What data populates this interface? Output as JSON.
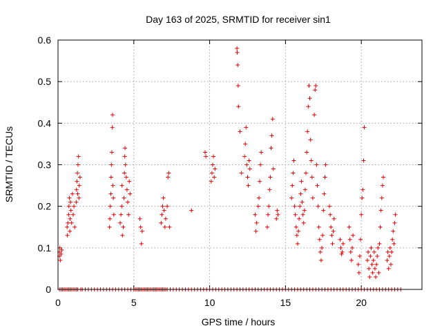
{
  "chart_data": {
    "type": "scatter",
    "title": "Day 163 of 2025, SRMTID for receiver sin1",
    "xlabel": "GPS time / hours",
    "ylabel": "SRMTID / TECUs",
    "xlim": [
      0,
      24
    ],
    "ylim": [
      0,
      0.6
    ],
    "xticks": [
      0,
      5,
      10,
      15,
      20
    ],
    "xtick_labels": [
      "0",
      "5",
      "10",
      "15",
      "20"
    ],
    "yticks": [
      0,
      0.1,
      0.2,
      0.3,
      0.4,
      0.5,
      0.6
    ],
    "ytick_labels": [
      "0",
      "0.1",
      "0.2",
      "0.3",
      "0.4",
      "0.5",
      "0.6"
    ],
    "grid": true,
    "marker": "+",
    "series": [
      {
        "name": "SRMTID",
        "color": "#e00000",
        "points": [
          [
            0.1,
            0.08
          ],
          [
            0.1,
            0.09
          ],
          [
            0.12,
            0.1
          ],
          [
            0.15,
            0.07
          ],
          [
            0.2,
            0.085
          ],
          [
            0.25,
            0.095
          ],
          [
            0.6,
            0.15
          ],
          [
            0.62,
            0.13
          ],
          [
            0.65,
            0.16
          ],
          [
            0.7,
            0.18
          ],
          [
            0.72,
            0.2
          ],
          [
            0.75,
            0.22
          ],
          [
            0.78,
            0.14
          ],
          [
            0.8,
            0.17
          ],
          [
            0.82,
            0.21
          ],
          [
            0.85,
            0.19
          ],
          [
            0.9,
            0.16
          ],
          [
            0.95,
            0.23
          ],
          [
            1.0,
            0.18
          ],
          [
            1.05,
            0.2
          ],
          [
            1.1,
            0.15
          ],
          [
            1.2,
            0.21
          ],
          [
            1.22,
            0.24
          ],
          [
            1.25,
            0.26
          ],
          [
            1.28,
            0.28
          ],
          [
            1.3,
            0.23
          ],
          [
            1.32,
            0.3
          ],
          [
            1.35,
            0.32
          ],
          [
            1.38,
            0.22
          ],
          [
            1.4,
            0.25
          ],
          [
            1.45,
            0.27
          ],
          [
            3.4,
            0.15
          ],
          [
            3.42,
            0.17
          ],
          [
            3.45,
            0.2
          ],
          [
            3.48,
            0.23
          ],
          [
            3.5,
            0.27
          ],
          [
            3.52,
            0.3
          ],
          [
            3.55,
            0.33
          ],
          [
            3.58,
            0.39
          ],
          [
            3.6,
            0.42
          ],
          [
            3.62,
            0.25
          ],
          [
            3.65,
            0.22
          ],
          [
            3.68,
            0.18
          ],
          [
            4.1,
            0.16
          ],
          [
            4.15,
            0.18
          ],
          [
            4.2,
            0.2
          ],
          [
            4.22,
            0.25
          ],
          [
            4.25,
            0.13
          ],
          [
            4.3,
            0.15
          ],
          [
            4.35,
            0.22
          ],
          [
            4.38,
            0.28
          ],
          [
            4.4,
            0.32
          ],
          [
            4.42,
            0.34
          ],
          [
            4.45,
            0.3
          ],
          [
            4.5,
            0.27
          ],
          [
            4.55,
            0.24
          ],
          [
            4.6,
            0.21
          ],
          [
            4.65,
            0.18
          ],
          [
            4.7,
            0.26
          ],
          [
            4.75,
            0.23
          ],
          [
            5.4,
            0.17
          ],
          [
            5.45,
            0.15
          ],
          [
            5.5,
            0.11
          ],
          [
            5.55,
            0.14
          ],
          [
            6.8,
            0.16
          ],
          [
            6.85,
            0.18
          ],
          [
            6.9,
            0.2
          ],
          [
            6.95,
            0.22
          ],
          [
            7.0,
            0.19
          ],
          [
            7.05,
            0.15
          ],
          [
            7.1,
            0.17
          ],
          [
            7.2,
            0.2
          ],
          [
            7.25,
            0.27
          ],
          [
            7.3,
            0.28
          ],
          [
            7.35,
            0.15
          ],
          [
            8.8,
            0.19
          ],
          [
            9.7,
            0.33
          ],
          [
            9.75,
            0.32
          ],
          [
            10.1,
            0.26
          ],
          [
            10.15,
            0.28
          ],
          [
            10.2,
            0.3
          ],
          [
            10.25,
            0.32
          ],
          [
            10.3,
            0.27
          ],
          [
            10.35,
            0.29
          ],
          [
            11.8,
            0.58
          ],
          [
            11.82,
            0.57
          ],
          [
            11.85,
            0.54
          ],
          [
            11.88,
            0.49
          ],
          [
            11.9,
            0.44
          ],
          [
            12.0,
            0.38
          ],
          [
            12.1,
            0.28
          ],
          [
            12.3,
            0.32
          ],
          [
            12.35,
            0.35
          ],
          [
            12.4,
            0.39
          ],
          [
            12.45,
            0.3
          ],
          [
            12.5,
            0.27
          ],
          [
            12.55,
            0.25
          ],
          [
            12.6,
            0.31
          ],
          [
            12.65,
            0.29
          ],
          [
            13.0,
            0.18
          ],
          [
            13.05,
            0.14
          ],
          [
            13.1,
            0.16
          ],
          [
            13.2,
            0.2
          ],
          [
            13.25,
            0.22
          ],
          [
            13.3,
            0.26
          ],
          [
            13.35,
            0.3
          ],
          [
            13.4,
            0.33
          ],
          [
            13.8,
            0.15
          ],
          [
            13.85,
            0.18
          ],
          [
            13.9,
            0.2
          ],
          [
            13.95,
            0.24
          ],
          [
            14.0,
            0.27
          ],
          [
            14.05,
            0.34
          ],
          [
            14.1,
            0.37
          ],
          [
            14.15,
            0.41
          ],
          [
            14.2,
            0.29
          ],
          [
            14.4,
            0.17
          ],
          [
            14.45,
            0.19
          ],
          [
            14.5,
            0.18
          ],
          [
            15.4,
            0.22
          ],
          [
            15.45,
            0.25
          ],
          [
            15.5,
            0.28
          ],
          [
            15.55,
            0.31
          ],
          [
            15.6,
            0.2
          ],
          [
            15.65,
            0.18
          ],
          [
            15.7,
            0.15
          ],
          [
            15.75,
            0.13
          ],
          [
            15.8,
            0.11
          ],
          [
            15.85,
            0.14
          ],
          [
            15.9,
            0.17
          ],
          [
            15.95,
            0.2
          ],
          [
            16.0,
            0.23
          ],
          [
            16.05,
            0.26
          ],
          [
            16.1,
            0.21
          ],
          [
            16.15,
            0.18
          ],
          [
            16.2,
            0.16
          ],
          [
            16.25,
            0.19
          ],
          [
            16.3,
            0.24
          ],
          [
            16.35,
            0.28
          ],
          [
            16.4,
            0.33
          ],
          [
            16.45,
            0.38
          ],
          [
            16.5,
            0.44
          ],
          [
            16.55,
            0.49
          ],
          [
            16.6,
            0.46
          ],
          [
            16.65,
            0.36
          ],
          [
            16.7,
            0.31
          ],
          [
            16.75,
            0.27
          ],
          [
            16.8,
            0.22
          ],
          [
            16.9,
            0.42
          ],
          [
            16.95,
            0.48
          ],
          [
            17.0,
            0.49
          ],
          [
            17.05,
            0.3
          ],
          [
            17.1,
            0.25
          ],
          [
            17.15,
            0.2
          ],
          [
            17.2,
            0.15
          ],
          [
            17.25,
            0.12
          ],
          [
            17.3,
            0.09
          ],
          [
            17.35,
            0.07
          ],
          [
            17.4,
            0.1
          ],
          [
            17.45,
            0.13
          ],
          [
            17.5,
            0.19
          ],
          [
            17.55,
            0.23
          ],
          [
            17.6,
            0.27
          ],
          [
            17.65,
            0.3
          ],
          [
            17.9,
            0.2
          ],
          [
            17.95,
            0.18
          ],
          [
            18.0,
            0.15
          ],
          [
            18.05,
            0.13
          ],
          [
            18.1,
            0.11
          ],
          [
            18.15,
            0.14
          ],
          [
            18.2,
            0.17
          ],
          [
            18.6,
            0.12
          ],
          [
            18.65,
            0.1
          ],
          [
            18.7,
            0.085
          ],
          [
            18.75,
            0.09
          ],
          [
            18.8,
            0.11
          ],
          [
            19.2,
            0.15
          ],
          [
            19.25,
            0.12
          ],
          [
            19.3,
            0.09
          ],
          [
            19.35,
            0.07
          ],
          [
            19.4,
            0.1
          ],
          [
            19.45,
            0.13
          ],
          [
            19.8,
            0.06
          ],
          [
            19.85,
            0.04
          ],
          [
            19.9,
            0.08
          ],
          [
            19.95,
            0.12
          ],
          [
            20.0,
            0.18
          ],
          [
            20.05,
            0.22
          ],
          [
            20.1,
            0.24
          ],
          [
            20.15,
            0.31
          ],
          [
            20.2,
            0.39
          ],
          [
            20.4,
            0.07
          ],
          [
            20.45,
            0.09
          ],
          [
            20.5,
            0.05
          ],
          [
            20.55,
            0.03
          ],
          [
            20.6,
            0.08
          ],
          [
            20.65,
            0.1
          ],
          [
            20.7,
            0.06
          ],
          [
            20.75,
            0.04
          ],
          [
            20.8,
            0.07
          ],
          [
            20.85,
            0.09
          ],
          [
            20.9,
            0.05
          ],
          [
            20.95,
            0.03
          ],
          [
            21.0,
            0.06
          ],
          [
            21.05,
            0.08
          ],
          [
            21.1,
            0.1
          ],
          [
            21.15,
            0.04
          ],
          [
            21.2,
            0.11
          ],
          [
            21.25,
            0.15
          ],
          [
            21.3,
            0.19
          ],
          [
            21.35,
            0.22
          ],
          [
            21.4,
            0.25
          ],
          [
            21.45,
            0.27
          ],
          [
            21.7,
            0.07
          ],
          [
            21.75,
            0.09
          ],
          [
            21.8,
            0.05
          ],
          [
            21.85,
            0.08
          ],
          [
            21.9,
            0.1
          ],
          [
            21.95,
            0.06
          ],
          [
            22.0,
            0.09
          ],
          [
            22.05,
            0.12
          ],
          [
            22.1,
            0.14
          ],
          [
            22.15,
            0.11
          ],
          [
            22.2,
            0.16
          ],
          [
            22.25,
            0.18
          ]
        ],
        "zero_x": [
          0.1,
          0.2,
          0.3,
          0.4,
          0.5,
          0.6,
          0.7,
          0.8,
          0.9,
          1.0,
          1.1,
          1.2,
          1.3,
          1.5,
          1.6,
          1.8,
          2.0,
          2.2,
          2.4,
          2.6,
          2.8,
          3.0,
          3.2,
          3.4,
          3.6,
          3.8,
          4.0,
          4.2,
          4.4,
          4.6,
          4.8,
          5.0,
          5.1,
          5.2,
          5.3,
          5.4,
          5.5,
          5.6,
          5.7,
          5.8,
          5.9,
          6.0,
          6.1,
          6.2,
          6.3,
          6.4,
          6.5,
          6.6,
          6.7,
          6.8,
          6.9,
          7.0,
          7.1,
          7.2,
          7.4,
          7.6,
          7.8,
          8.0,
          8.2,
          8.4,
          8.6,
          8.8,
          9.0,
          9.2,
          9.4,
          9.6,
          9.8,
          10.0,
          10.2,
          10.4,
          10.6,
          10.8,
          11.0,
          11.2,
          11.4,
          11.6,
          11.8,
          12.0,
          12.2,
          12.4,
          12.6,
          12.8,
          13.0,
          13.2,
          13.4,
          13.6,
          13.8,
          14.0,
          14.2,
          14.4,
          14.6,
          14.8,
          15.0,
          15.2,
          15.4,
          15.6,
          15.8,
          16.0,
          16.2,
          16.4,
          16.6,
          16.8,
          17.0,
          17.2,
          17.4,
          17.6,
          17.8,
          18.0,
          18.2,
          18.4,
          18.6,
          18.8,
          19.0,
          19.2,
          19.4,
          19.6,
          19.8,
          20.0,
          20.2,
          20.4,
          20.6,
          20.8,
          21.0,
          21.2,
          21.4,
          21.6,
          21.8,
          22.0,
          22.2,
          22.4,
          22.6
        ]
      }
    ]
  }
}
